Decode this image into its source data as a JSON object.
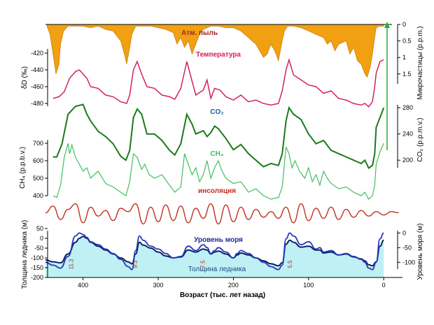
{
  "chart_data": {
    "type": "line",
    "x_axis": {
      "label": "Возраст (тыс. лет назад)",
      "range": [
        450,
        -25
      ],
      "ticks": [
        400,
        300,
        200,
        100,
        0
      ]
    },
    "panels": {
      "dust": {
        "name": "Атм. пыль",
        "axis_label": "Микрочастицы (p.p.m.)",
        "axis_side": "right",
        "range": [
          0,
          1.8
        ],
        "ticks": [
          0,
          0.5,
          1,
          1.5
        ],
        "tick_labels": [
          "0",
          "0.5",
          "1",
          "1.5"
        ],
        "color": "#f0a010",
        "x": [
          448,
          444,
          440,
          436,
          432,
          430,
          426,
          420,
          410,
          400,
          390,
          380,
          370,
          360,
          350,
          345,
          342,
          338,
          335,
          330,
          320,
          310,
          300,
          290,
          280,
          275,
          270,
          265,
          260,
          255,
          250,
          245,
          240,
          235,
          230,
          220,
          210,
          200,
          190,
          180,
          170,
          165,
          160,
          155,
          150,
          145,
          140,
          135,
          132,
          128,
          120,
          110,
          100,
          90,
          80,
          75,
          70,
          65,
          60,
          50,
          45,
          40,
          35,
          30,
          25,
          22,
          18,
          15,
          12,
          10,
          5,
          0
        ],
        "y": [
          0.05,
          0.3,
          0.9,
          1.5,
          1.2,
          0.6,
          0.2,
          0.05,
          0.05,
          0.05,
          0.1,
          0.05,
          0.15,
          0.2,
          0.5,
          0.9,
          1.2,
          0.7,
          0.3,
          0.05,
          0.05,
          0.05,
          0.1,
          0.15,
          0.25,
          0.6,
          0.4,
          0.7,
          0.5,
          0.9,
          0.6,
          0.3,
          0.15,
          0.1,
          0.05,
          0.05,
          0.1,
          0.1,
          0.2,
          0.4,
          0.6,
          0.8,
          1.0,
          0.9,
          0.6,
          0.8,
          1.1,
          0.5,
          0.2,
          0.05,
          0.05,
          0.1,
          0.2,
          0.3,
          0.4,
          0.6,
          0.5,
          0.8,
          0.6,
          0.5,
          0.9,
          0.7,
          1.1,
          1.2,
          1.5,
          1.6,
          1.3,
          0.9,
          0.4,
          0.1,
          0.05,
          0.05
        ]
      },
      "temperature": {
        "name": "Температура",
        "axis_label": "δD (‰)",
        "axis_side": "left",
        "range": [
          -490,
          -405
        ],
        "ticks": [
          -420,
          -440,
          -460,
          -480
        ],
        "tick_labels": [
          "-420",
          "-440",
          "-460",
          "-480"
        ],
        "color": "#d42060",
        "x": [
          440,
          432,
          425,
          418,
          410,
          405,
          400,
          395,
          390,
          380,
          370,
          360,
          350,
          342,
          338,
          333,
          328,
          322,
          315,
          305,
          295,
          285,
          278,
          270,
          262,
          250,
          240,
          235,
          230,
          225,
          218,
          210,
          200,
          190,
          180,
          170,
          160,
          150,
          140,
          135,
          130,
          126,
          120,
          110,
          100,
          90,
          80,
          70,
          60,
          50,
          40,
          30,
          25,
          20,
          15,
          12,
          10,
          5,
          0
        ],
        "y": [
          -474,
          -472,
          -466,
          -450,
          -442,
          -440,
          -445,
          -450,
          -460,
          -462,
          -470,
          -472,
          -478,
          -480,
          -470,
          -440,
          -430,
          -445,
          -460,
          -462,
          -470,
          -472,
          -475,
          -462,
          -430,
          -470,
          -464,
          -452,
          -474,
          -462,
          -464,
          -472,
          -476,
          -470,
          -478,
          -476,
          -480,
          -482,
          -480,
          -465,
          -440,
          -428,
          -446,
          -452,
          -458,
          -460,
          -468,
          -465,
          -474,
          -476,
          -480,
          -482,
          -480,
          -484,
          -478,
          -460,
          -444,
          -430,
          -428
        ]
      },
      "co2": {
        "name": "CO₂",
        "axis_label": "CO₂ (p.p.m.v.)",
        "axis_side": "right",
        "range": [
          180,
          295
        ],
        "ticks": [
          280,
          240,
          200
        ],
        "tick_labels": [
          "280",
          "240",
          "200"
        ],
        "color": "#1a7a1a",
        "x": [
          440,
          435,
          428,
          420,
          410,
          400,
          395,
          390,
          380,
          370,
          360,
          350,
          343,
          338,
          333,
          328,
          322,
          315,
          305,
          295,
          285,
          278,
          270,
          262,
          255,
          250,
          240,
          235,
          230,
          225,
          220,
          210,
          200,
          190,
          180,
          170,
          160,
          150,
          140,
          135,
          130,
          126,
          120,
          110,
          100,
          90,
          80,
          70,
          60,
          50,
          40,
          30,
          25,
          20,
          15,
          12,
          10,
          5,
          0
        ],
        "y": [
          205,
          205,
          225,
          270,
          282,
          285,
          270,
          260,
          244,
          236,
          225,
          206,
          200,
          215,
          265,
          278,
          270,
          240,
          240,
          230,
          215,
          208,
          225,
          270,
          255,
          240,
          245,
          236,
          242,
          252,
          248,
          233,
          216,
          224,
          210,
          200,
          190,
          195,
          192,
          210,
          260,
          280,
          270,
          262,
          240,
          225,
          230,
          215,
          210,
          205,
          200,
          195,
          200,
          188,
          192,
          210,
          250,
          265,
          280
        ]
      },
      "ch4": {
        "name": "CH₄",
        "axis_label": "CH₄ (p.p.b.v.)",
        "axis_side": "left",
        "range": [
          360,
          760
        ],
        "ticks": [
          700,
          600,
          500,
          400
        ],
        "tick_labels": [
          "700",
          "600",
          "500",
          "400"
        ],
        "color": "#40c060",
        "x": [
          440,
          435,
          430,
          425,
          420,
          418,
          415,
          410,
          405,
          400,
          395,
          390,
          380,
          370,
          360,
          350,
          343,
          338,
          333,
          328,
          322,
          318,
          312,
          305,
          295,
          285,
          278,
          270,
          265,
          260,
          255,
          250,
          245,
          240,
          235,
          230,
          225,
          220,
          215,
          210,
          200,
          190,
          180,
          170,
          160,
          150,
          140,
          135,
          130,
          126,
          122,
          118,
          112,
          105,
          100,
          95,
          90,
          85,
          80,
          75,
          70,
          60,
          50,
          40,
          30,
          25,
          20,
          15,
          12,
          10,
          5,
          0
        ],
        "y": [
          400,
          390,
          460,
          620,
          700,
          640,
          690,
          620,
          580,
          540,
          560,
          500,
          540,
          470,
          450,
          420,
          400,
          480,
          640,
          620,
          550,
          580,
          520,
          500,
          520,
          460,
          420,
          450,
          640,
          580,
          520,
          560,
          480,
          520,
          600,
          500,
          560,
          600,
          540,
          500,
          470,
          480,
          420,
          440,
          400,
          380,
          390,
          450,
          680,
          640,
          560,
          600,
          540,
          500,
          560,
          480,
          520,
          460,
          540,
          500,
          470,
          440,
          450,
          420,
          400,
          420,
          380,
          400,
          460,
          580,
          650,
          700
        ]
      },
      "insolation": {
        "name": "инсоляция",
        "color": "#c03020",
        "x": [
          450,
          440,
          430,
          420,
          410,
          400,
          390,
          380,
          370,
          360,
          350,
          340,
          330,
          320,
          310,
          300,
          290,
          280,
          270,
          260,
          250,
          240,
          230,
          220,
          210,
          200,
          190,
          180,
          170,
          160,
          150,
          140,
          130,
          120,
          110,
          100,
          90,
          80,
          70,
          60,
          50,
          40,
          30,
          20,
          10,
          0,
          -10,
          -20
        ],
        "y": [
          0.1,
          0.7,
          -0.5,
          0.4,
          0.9,
          -0.8,
          0.6,
          -0.2,
          0.3,
          -0.6,
          0.5,
          0.2,
          0.9,
          -0.9,
          0.6,
          -0.7,
          0.8,
          -0.6,
          0.7,
          -0.8,
          0.5,
          -0.4,
          0.9,
          -0.9,
          0.8,
          -0.7,
          0.6,
          -0.5,
          0.4,
          -0.3,
          0.2,
          -0.4,
          0.6,
          -0.8,
          0.9,
          -0.6,
          0.5,
          -0.4,
          0.6,
          -0.5,
          0.4,
          -0.3,
          0.3,
          -0.2,
          0.2,
          -0.1,
          0.2,
          0.1
        ]
      },
      "sea_level": {
        "name": "Уровень моря",
        "axis_label": "Уровень моря (м)",
        "axis_side": "right",
        "range": [
          -140,
          20
        ],
        "ticks": [
          0,
          -50,
          -100
        ],
        "tick_labels": [
          "0",
          "-50",
          "-100"
        ],
        "color": "#2838b8",
        "x": [
          450,
          440,
          430,
          420,
          410,
          405,
          400,
          395,
          390,
          380,
          370,
          360,
          350,
          340,
          335,
          330,
          325,
          320,
          310,
          300,
          290,
          280,
          270,
          260,
          250,
          240,
          235,
          230,
          225,
          220,
          210,
          200,
          195,
          190,
          180,
          170,
          160,
          150,
          140,
          135,
          130,
          125,
          120,
          110,
          100,
          90,
          85,
          80,
          70,
          60,
          50,
          40,
          30,
          25,
          20,
          15,
          10,
          5,
          0
        ],
        "y": [
          -100,
          -110,
          -120,
          -80,
          -10,
          0,
          -5,
          -15,
          -30,
          -40,
          -55,
          -70,
          -90,
          -115,
          -125,
          -60,
          -10,
          -25,
          -45,
          -55,
          -70,
          -85,
          -80,
          -45,
          -60,
          -40,
          -50,
          -70,
          -60,
          -50,
          -65,
          -85,
          -70,
          -60,
          -70,
          -85,
          -100,
          -115,
          -125,
          -110,
          -20,
          0,
          -10,
          -40,
          -30,
          -55,
          -50,
          -65,
          -60,
          -75,
          -70,
          -80,
          -90,
          -100,
          -120,
          -125,
          -100,
          -20,
          0
        ]
      },
      "ice": {
        "name": "Толщина ледника",
        "axis_label": "Толщина ледника (м)",
        "axis_side": "left",
        "range": [
          -200,
          75
        ],
        "ticks": [
          50,
          0,
          -50,
          -100,
          -150,
          -200
        ],
        "tick_labels": [
          "50",
          "0",
          "-50",
          "-100",
          "-150",
          "-200"
        ],
        "fill": "#bff0f4",
        "line_color": "#0a2060",
        "x": [
          450,
          440,
          430,
          420,
          410,
          405,
          400,
          395,
          390,
          380,
          370,
          360,
          350,
          340,
          335,
          330,
          325,
          320,
          310,
          300,
          290,
          280,
          270,
          260,
          250,
          240,
          235,
          230,
          225,
          220,
          210,
          200,
          195,
          190,
          180,
          170,
          160,
          150,
          140,
          135,
          130,
          125,
          120,
          110,
          100,
          90,
          85,
          80,
          70,
          60,
          50,
          40,
          30,
          25,
          20,
          15,
          10,
          5,
          0
        ],
        "y": [
          -110,
          -120,
          -125,
          -80,
          -20,
          0,
          10,
          0,
          -20,
          -40,
          -60,
          -80,
          -100,
          -120,
          -130,
          -80,
          -20,
          -35,
          -50,
          -70,
          -90,
          -100,
          -95,
          -60,
          -70,
          -55,
          -60,
          -80,
          -70,
          -65,
          -80,
          -100,
          -85,
          -75,
          -85,
          -100,
          -115,
          -130,
          -140,
          -125,
          -30,
          -10,
          -20,
          -45,
          -40,
          -60,
          -60,
          -75,
          -70,
          -85,
          -80,
          -95,
          -105,
          -115,
          -135,
          -140,
          -120,
          -40,
          -10
        ]
      }
    },
    "event_labels": [
      {
        "text": "11.3",
        "x": 413
      },
      {
        "text": "9.3",
        "x": 328
      },
      {
        "text": "7.5",
        "x": 238
      },
      {
        "text": "5.5",
        "x": 122
      }
    ]
  }
}
